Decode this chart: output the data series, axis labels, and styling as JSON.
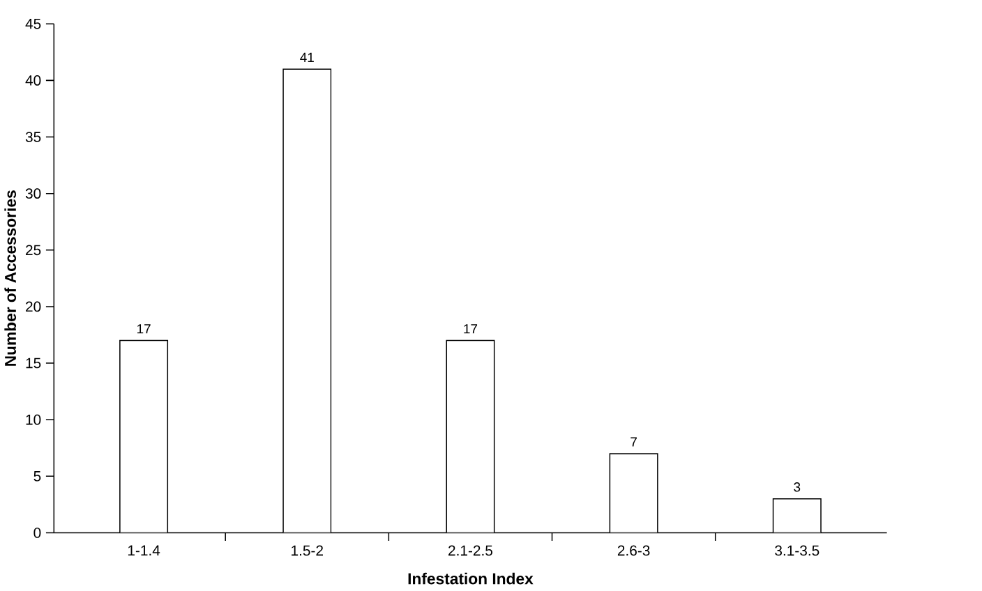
{
  "chart_data": {
    "type": "bar",
    "xlabel": "Infestation Index",
    "ylabel": "Number of Accessories",
    "categories": [
      "1-1.4",
      "1.5-2",
      "2.1-2.5",
      "2.6-3",
      "3.1-3.5"
    ],
    "values": [
      17,
      41,
      17,
      7,
      3
    ],
    "color": "#ffffff",
    "ylim": [
      0,
      45
    ],
    "yticks": [
      0,
      5,
      10,
      15,
      20,
      25,
      30,
      35,
      40,
      45
    ],
    "data_labels": true
  }
}
